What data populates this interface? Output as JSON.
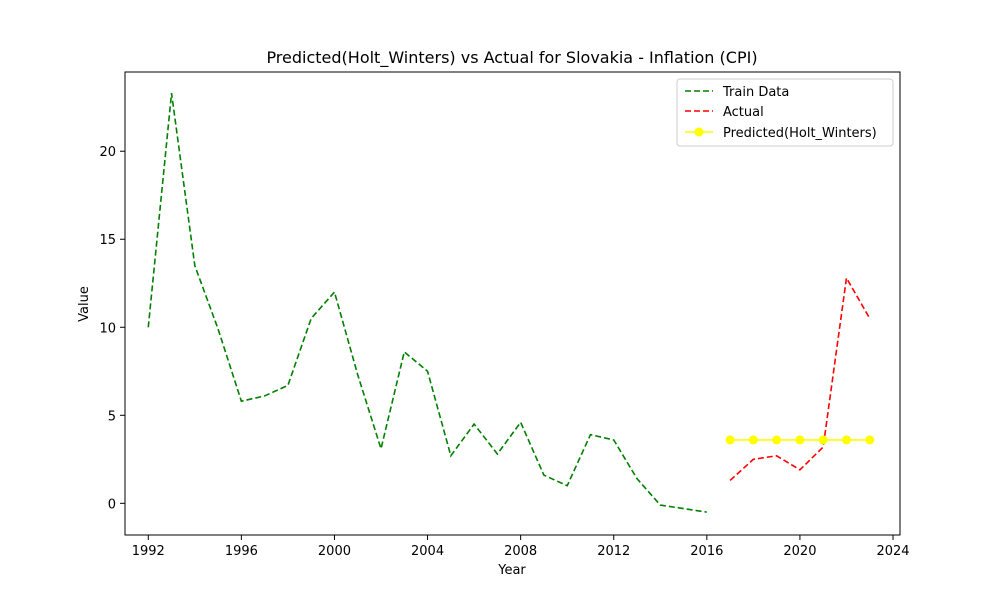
{
  "chart_data": {
    "type": "line",
    "title": "Predicted(Holt_Winters) vs Actual for Slovakia - Inflation (CPI)",
    "xlabel": "Year",
    "ylabel": "Value",
    "xlim": [
      1991,
      2024.3
    ],
    "ylim": [
      -1.8,
      24.5
    ],
    "x_ticks": [
      1992,
      1996,
      2000,
      2004,
      2008,
      2012,
      2016,
      2020,
      2024
    ],
    "y_ticks": [
      0,
      5,
      10,
      15,
      20
    ],
    "grid": false,
    "legend_position": "top-right",
    "series": [
      {
        "name": "Train Data",
        "color": "#008000",
        "style": "dashed",
        "x": [
          1992,
          1993,
          1994,
          1995,
          1996,
          1997,
          1998,
          1999,
          2000,
          2001,
          2002,
          2003,
          2004,
          2005,
          2006,
          2007,
          2008,
          2009,
          2010,
          2011,
          2012,
          2013,
          2014,
          2015,
          2016
        ],
        "y": [
          10.0,
          23.3,
          13.5,
          9.9,
          5.8,
          6.1,
          6.7,
          10.5,
          12.0,
          7.3,
          3.1,
          8.6,
          7.5,
          2.7,
          4.5,
          2.8,
          4.6,
          1.6,
          1.0,
          3.9,
          3.6,
          1.4,
          -0.1,
          -0.3,
          -0.5
        ]
      },
      {
        "name": "Actual",
        "color": "#ff0000",
        "style": "dashed",
        "x": [
          2017,
          2018,
          2019,
          2020,
          2021,
          2022,
          2023
        ],
        "y": [
          1.3,
          2.5,
          2.7,
          1.9,
          3.2,
          12.8,
          10.5
        ]
      },
      {
        "name": "Predicted(Holt_Winters)",
        "color": "#ffff00",
        "style": "solid-marker",
        "x": [
          2017,
          2018,
          2019,
          2020,
          2021,
          2022,
          2023
        ],
        "y": [
          3.6,
          3.6,
          3.6,
          3.6,
          3.6,
          3.6,
          3.6
        ]
      }
    ]
  }
}
